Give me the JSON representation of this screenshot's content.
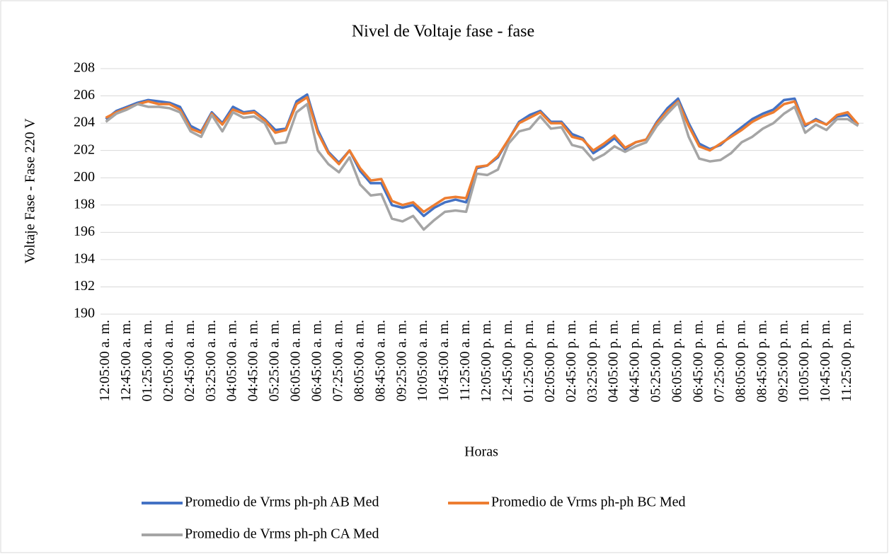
{
  "chart_data": {
    "type": "line",
    "title": "Nivel de Voltaje fase - fase",
    "x_label": "Horas",
    "y_label": "Voltaje Fase - Fase 220 V",
    "categories": [
      "12:05:00 a. m.",
      null,
      "12:45:00 a. m.",
      null,
      "01:25:00 a. m.",
      null,
      "02:05:00 a. m.",
      null,
      "02:45:00 a. m.",
      null,
      "03:25:00 a. m.",
      null,
      "04:05:00 a. m.",
      null,
      "04:45:00 a. m.",
      null,
      "05:25:00 a. m.",
      null,
      "06:05:00 a. m.",
      null,
      "06:45:00 a. m.",
      null,
      "07:25:00 a. m.",
      null,
      "08:05:00 a. m.",
      null,
      "08:45:00 a. m.",
      null,
      "09:25:00 a. m.",
      null,
      "10:05:00 a. m.",
      null,
      "10:45:00 a. m.",
      null,
      "11:25:00 a. m.",
      null,
      "12:05:00 p. m.",
      null,
      "12:45:00 p. m.",
      null,
      "01:25:00 p. m.",
      null,
      "02:05:00 p. m.",
      null,
      "02:45:00 p. m.",
      null,
      "03:25:00 p. m.",
      null,
      "04:05:00 p. m.",
      null,
      "04:45:00 p. m.",
      null,
      "05:25:00 p. m.",
      null,
      "06:05:00 p. m.",
      null,
      "06:45:00 p. m.",
      null,
      "07:25:00 p. m.",
      null,
      "08:05:00 p. m.",
      null,
      "08:45:00 p. m.",
      null,
      "09:25:00 p. m.",
      null,
      "10:05:00 p. m.",
      null,
      "10:45:00 p. m.",
      null,
      "11:25:00 p. m.",
      null
    ],
    "series": [
      {
        "name": "Promedio de Vrms ph-ph AB Med",
        "color": "#4472c4",
        "values": [
          204.3,
          204.9,
          205.2,
          205.5,
          205.7,
          205.6,
          205.5,
          205.2,
          203.8,
          203.4,
          204.8,
          204.0,
          205.2,
          204.8,
          204.9,
          204.3,
          203.5,
          203.6,
          205.6,
          206.1,
          203.5,
          201.9,
          201.1,
          202.0,
          200.5,
          199.6,
          199.6,
          198.0,
          197.8,
          198.0,
          197.2,
          197.8,
          198.2,
          198.4,
          198.2,
          200.7,
          200.9,
          201.5,
          202.8,
          204.1,
          204.6,
          204.9,
          204.1,
          204.1,
          203.2,
          202.9,
          201.8,
          202.3,
          202.9,
          202.1,
          202.6,
          202.8,
          204.1,
          205.1,
          205.8,
          204.0,
          202.5,
          202.1,
          202.4,
          203.1,
          203.7,
          204.3,
          204.7,
          205.0,
          205.7,
          205.8,
          203.8,
          204.3,
          203.9,
          204.5,
          204.6,
          203.9
        ]
      },
      {
        "name": "Promedio de Vrms ph-ph BC Med",
        "color": "#ed7d31",
        "values": [
          204.4,
          204.8,
          205.1,
          205.4,
          205.6,
          205.4,
          205.4,
          205.0,
          203.6,
          203.3,
          204.7,
          203.9,
          205.0,
          204.7,
          204.8,
          204.2,
          203.3,
          203.5,
          205.4,
          205.9,
          203.3,
          201.8,
          201.0,
          202.0,
          200.7,
          199.8,
          199.9,
          198.3,
          198.0,
          198.2,
          197.5,
          198.0,
          198.5,
          198.6,
          198.5,
          200.8,
          200.9,
          201.6,
          202.8,
          204.0,
          204.4,
          204.8,
          204.0,
          204.0,
          203.0,
          202.8,
          202.0,
          202.5,
          203.1,
          202.2,
          202.6,
          202.8,
          204.0,
          204.9,
          205.6,
          203.8,
          202.3,
          202.0,
          202.5,
          203.0,
          203.5,
          204.1,
          204.5,
          204.8,
          205.4,
          205.6,
          203.9,
          204.2,
          203.9,
          204.6,
          204.8,
          203.9
        ]
      },
      {
        "name": "Promedio de Vrms ph-ph CA Med",
        "color": "#a5a5a5",
        "values": [
          204.1,
          204.7,
          205.0,
          205.4,
          205.2,
          205.2,
          205.1,
          204.8,
          203.4,
          203.0,
          204.6,
          203.4,
          204.8,
          204.4,
          204.5,
          204.0,
          202.5,
          202.6,
          204.8,
          205.4,
          202.0,
          201.0,
          200.4,
          201.5,
          199.5,
          198.7,
          198.8,
          197.0,
          196.8,
          197.2,
          196.2,
          196.9,
          197.5,
          197.6,
          197.5,
          200.3,
          200.2,
          200.6,
          202.5,
          203.4,
          203.6,
          204.5,
          203.6,
          203.7,
          202.4,
          202.2,
          201.3,
          201.7,
          202.3,
          201.9,
          202.3,
          202.6,
          203.8,
          204.7,
          205.5,
          203.0,
          201.4,
          201.2,
          201.3,
          201.8,
          202.6,
          203.0,
          203.6,
          204.0,
          204.7,
          205.2,
          203.3,
          203.9,
          203.5,
          204.3,
          204.3,
          203.8
        ]
      }
    ],
    "ylim": [
      190,
      208
    ],
    "yticks": [
      190,
      192,
      194,
      196,
      198,
      200,
      202,
      204,
      206,
      208
    ],
    "grid": true,
    "legend": "bottom"
  }
}
